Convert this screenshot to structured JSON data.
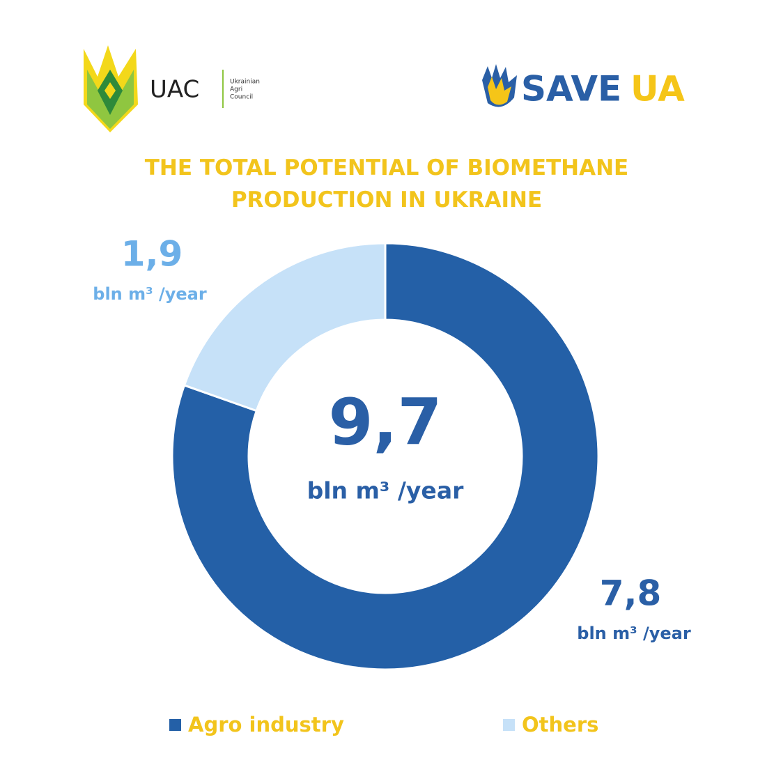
{
  "chart_data": {
    "type": "donut",
    "title": "THE TOTAL POTENTIAL OF BIOMETHANE PRODUCTION IN UKRAINE",
    "categories": [
      "Agro industry",
      "Others"
    ],
    "values": [
      7.8,
      1.9
    ],
    "value_labels": [
      "7,8",
      "1,9"
    ],
    "colors": [
      "#2460a7",
      "#c6e1f8"
    ],
    "label_colors": [
      "#2a5fa6",
      "#6cafe8"
    ],
    "unit": "bln m³ /year",
    "total": 9.7,
    "total_label": "9,7",
    "legend": "bottom"
  },
  "logos": {
    "uac": {
      "name": "UAC",
      "subtitle": [
        "Ukrainian",
        "Agri",
        "Council"
      ]
    },
    "saveua": [
      "SAVE",
      "UA"
    ]
  }
}
